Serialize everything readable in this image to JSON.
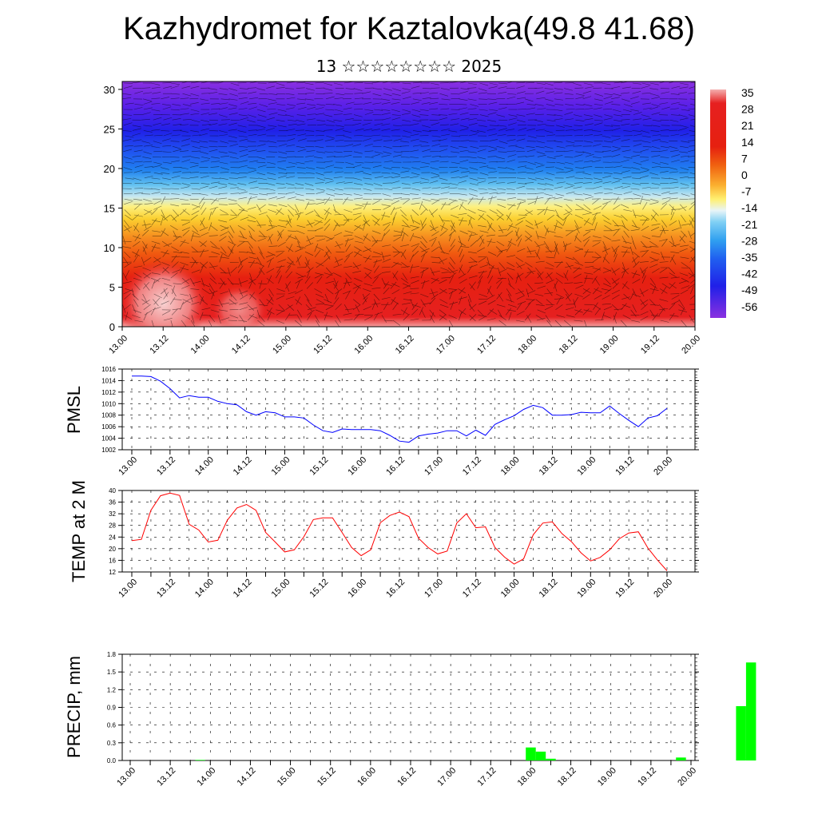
{
  "title": "Kazhydromet for Kaztalovka(49.8 41.68)",
  "subtitle": "13 ☆☆☆☆☆☆☆☆ 2025",
  "x_labels": [
    "13.00",
    "13.12",
    "14.00",
    "14.12",
    "15.00",
    "15.12",
    "16.00",
    "16.12",
    "17.00",
    "17.12",
    "18.00",
    "18.12",
    "19.00",
    "19.12",
    "20.00"
  ],
  "chart_data": [
    {
      "type": "heatmap",
      "title": "",
      "x": [
        "13.00",
        "13.12",
        "14.00",
        "14.12",
        "15.00",
        "15.12",
        "16.00",
        "16.12",
        "17.00",
        "17.12",
        "18.00",
        "18.12",
        "19.00",
        "19.12",
        "20.00"
      ],
      "ylim": [
        0,
        31
      ],
      "y_ticks": [
        0,
        5,
        10,
        15,
        20,
        25,
        30
      ],
      "colorbar": {
        "labels": [
          "35",
          "28",
          "21",
          "14",
          "7",
          "0",
          "-7",
          "-14",
          "-21",
          "-28",
          "-35",
          "-42",
          "-49",
          "-56"
        ],
        "range": [
          -56,
          35
        ]
      },
      "temperature_profile": [
        {
          "level": 0,
          "value": 30
        },
        {
          "level": 5,
          "value": 28
        },
        {
          "level": 9,
          "value": 20
        },
        {
          "level": 12,
          "value": 10
        },
        {
          "level": 14,
          "value": 0
        },
        {
          "level": 16,
          "value": -10
        },
        {
          "level": 18,
          "value": -25
        },
        {
          "level": 21,
          "value": -38
        },
        {
          "level": 24,
          "value": -50
        },
        {
          "level": 27,
          "value": -56
        },
        {
          "level": 31,
          "value": -60
        }
      ]
    },
    {
      "type": "line",
      "ylabel": "PMSL",
      "ylim": [
        1002,
        1016
      ],
      "y_ticks": [
        1002,
        1004,
        1006,
        1008,
        1010,
        1012,
        1014,
        1016
      ],
      "color": "#0000ff",
      "x_start": 0.25,
      "x_step": 0.25,
      "values": [
        1014.8,
        1014.8,
        1014.7,
        1013.9,
        1012.6,
        1011.0,
        1011.4,
        1011.1,
        1011.1,
        1010.4,
        1010.0,
        1009.8,
        1008.6,
        1008.0,
        1008.6,
        1008.4,
        1007.7,
        1007.7,
        1007.5,
        1006.3,
        1005.3,
        1005.0,
        1005.6,
        1005.5,
        1005.5,
        1005.5,
        1005.3,
        1004.5,
        1003.5,
        1003.3,
        1004.4,
        1004.7,
        1004.9,
        1005.3,
        1005.3,
        1004.4,
        1005.4,
        1004.5,
        1006.4,
        1007.2,
        1007.9,
        1009.0,
        1009.7,
        1009.3,
        1008.0,
        1008.0,
        1008.1,
        1008.5,
        1008.4,
        1008.4,
        1009.6,
        1008.3,
        1007.1,
        1006.0,
        1007.5,
        1007.9,
        1009.2
      ]
    },
    {
      "type": "line",
      "ylabel": "TEMP at 2 M",
      "ylim": [
        12,
        40
      ],
      "y_ticks": [
        12,
        16,
        20,
        24,
        28,
        32,
        36,
        40
      ],
      "color": "#ff0000",
      "x_start": 0.25,
      "x_step": 0.25,
      "values": [
        22.8,
        23.2,
        33.2,
        38.2,
        39.1,
        38.3,
        28.4,
        26.4,
        22.3,
        22.9,
        29.8,
        34.0,
        35.2,
        33.2,
        25.6,
        22.3,
        18.9,
        19.6,
        24.1,
        30.0,
        30.6,
        30.6,
        25.6,
        20.4,
        17.6,
        19.6,
        28.9,
        31.4,
        32.6,
        31.0,
        23.6,
        20.4,
        18.2,
        19.2,
        28.8,
        32.0,
        27.2,
        27.5,
        20.4,
        17.1,
        14.7,
        16.5,
        24.8,
        28.8,
        29.2,
        25.2,
        22.4,
        18.6,
        15.8,
        17.0,
        19.6,
        23.4,
        25.4,
        25.8,
        20.2,
        16.1,
        12.4
      ]
    },
    {
      "type": "bar",
      "ylabel": "PRECIP, mm",
      "ylim": [
        0,
        1.8
      ],
      "y_ticks": [
        "0.0",
        "0.3",
        "0.6",
        "0.9",
        "1.2",
        "1.5",
        "1.8"
      ],
      "color": "#00ff00",
      "x_step": 0.25,
      "values": [
        0,
        0,
        0,
        0,
        0,
        0,
        0,
        0.01,
        0,
        0,
        0,
        0,
        0,
        0,
        0,
        0,
        0,
        0,
        0,
        0,
        0,
        0,
        0,
        0,
        0,
        0,
        0,
        0,
        0,
        0,
        0,
        0,
        0,
        0,
        0,
        0,
        0,
        0,
        0,
        0,
        0.22,
        0.15,
        0.03,
        0,
        0,
        0,
        0,
        0,
        0,
        0,
        0,
        0,
        0,
        0,
        0,
        0.05,
        0,
        0,
        0,
        0,
        0,
        0.92,
        1.66,
        0,
        0,
        0,
        0,
        0,
        0,
        0,
        0,
        0
      ]
    }
  ]
}
